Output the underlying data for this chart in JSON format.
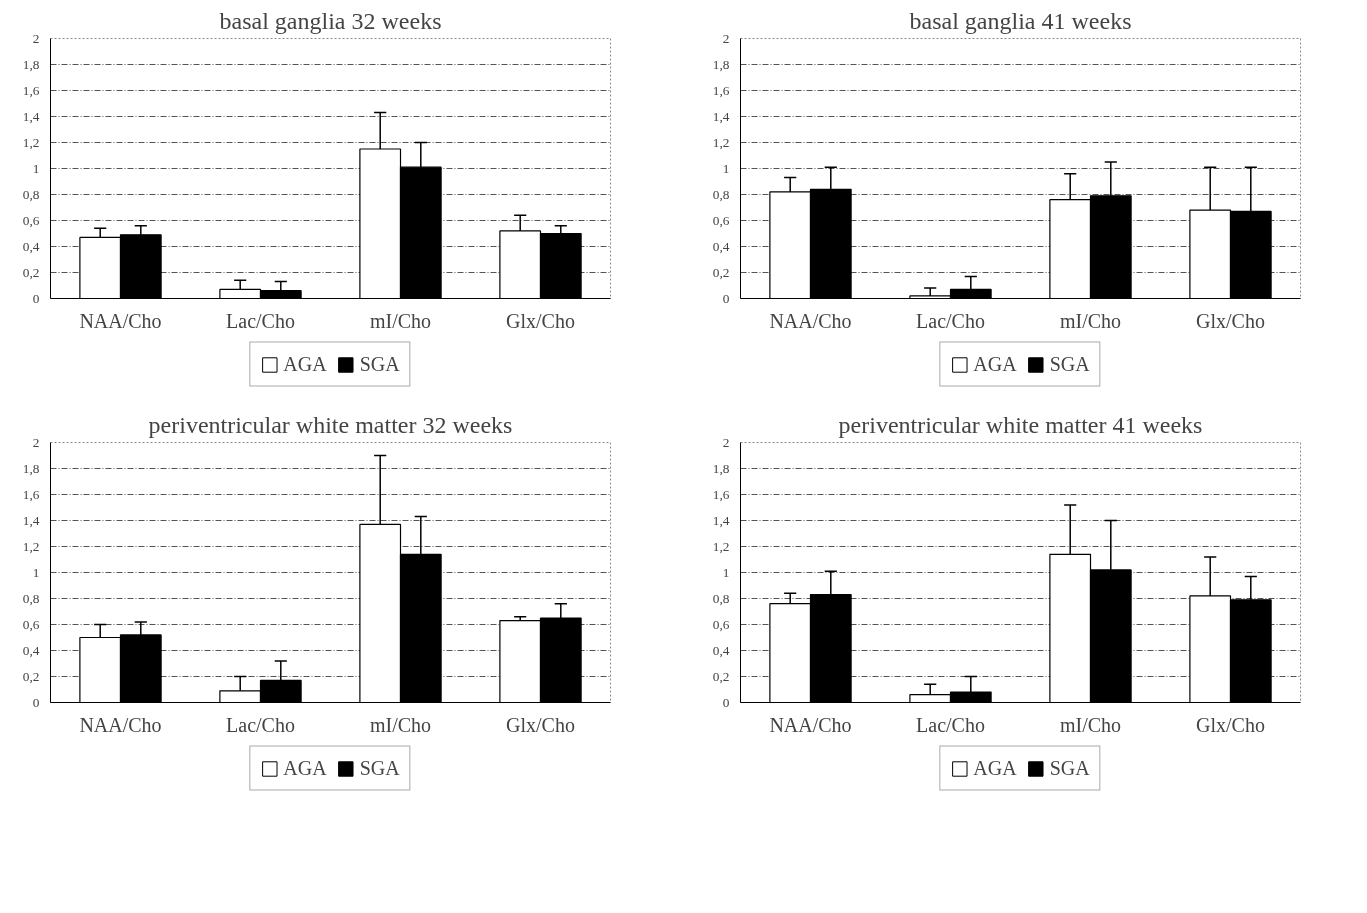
{
  "chart_data": [
    {
      "type": "bar",
      "title": "basal ganglia 32 weeks",
      "categories": [
        "NAA/Cho",
        "Lac/Cho",
        "mI/Cho",
        "Glx/Cho"
      ],
      "ylim": [
        0,
        2
      ],
      "yticks": [
        {
          "value": 0,
          "label": "0"
        },
        {
          "value": 0.2,
          "label": "0,2"
        },
        {
          "value": 0.4,
          "label": "0,4"
        },
        {
          "value": 0.6,
          "label": "0,6"
        },
        {
          "value": 0.8,
          "label": "0,8"
        },
        {
          "value": 1,
          "label": "1"
        },
        {
          "value": 1.2,
          "label": "1,2"
        },
        {
          "value": 1.4,
          "label": "1,4"
        },
        {
          "value": 1.6,
          "label": "1,6"
        },
        {
          "value": 1.8,
          "label": "1,8"
        },
        {
          "value": 2,
          "label": "2"
        }
      ],
      "grid": "y",
      "legend": "bottom",
      "series": [
        {
          "name": "AGA",
          "color": "#ffffff",
          "values": [
            0.47,
            0.07,
            1.15,
            0.52
          ],
          "errors": [
            [
              0.47,
              0.54
            ],
            [
              0.07,
              0.14
            ],
            [
              1.15,
              1.43
            ],
            [
              0.52,
              0.64
            ]
          ]
        },
        {
          "name": "SGA",
          "color": "#000000",
          "values": [
            0.49,
            0.06,
            1.01,
            0.5
          ],
          "errors": [
            [
              0.49,
              0.56
            ],
            [
              0.06,
              0.13
            ],
            [
              1.01,
              1.2
            ],
            [
              0.5,
              0.56
            ]
          ]
        }
      ]
    },
    {
      "type": "bar",
      "title": "basal ganglia 41 weeks",
      "categories": [
        "NAA/Cho",
        "Lac/Cho",
        "mI/Cho",
        "Glx/Cho"
      ],
      "ylim": [
        0,
        2
      ],
      "yticks": [
        {
          "value": 0,
          "label": "0"
        },
        {
          "value": 0.2,
          "label": "0,2"
        },
        {
          "value": 0.4,
          "label": "0,4"
        },
        {
          "value": 0.6,
          "label": "0,6"
        },
        {
          "value": 0.8,
          "label": "0,8"
        },
        {
          "value": 1,
          "label": "1"
        },
        {
          "value": 1.2,
          "label": "1,2"
        },
        {
          "value": 1.4,
          "label": "1,4"
        },
        {
          "value": 1.6,
          "label": "1,6"
        },
        {
          "value": 1.8,
          "label": "1,8"
        },
        {
          "value": 2,
          "label": "2"
        }
      ],
      "grid": "y",
      "legend": "bottom",
      "series": [
        {
          "name": "AGA",
          "color": "#ffffff",
          "values": [
            0.82,
            0.02,
            0.76,
            0.68
          ],
          "errors": [
            [
              0.82,
              0.93
            ],
            [
              0.02,
              0.08
            ],
            [
              0.76,
              0.96
            ],
            [
              0.68,
              1.01
            ]
          ]
        },
        {
          "name": "SGA",
          "color": "#000000",
          "values": [
            0.84,
            0.07,
            0.79,
            0.67
          ],
          "errors": [
            [
              0.84,
              1.01
            ],
            [
              0.07,
              0.17
            ],
            [
              0.79,
              1.05
            ],
            [
              0.67,
              1.01
            ]
          ]
        }
      ]
    },
    {
      "type": "bar",
      "title": "periventricular white matter 32 weeks",
      "categories": [
        "NAA/Cho",
        "Lac/Cho",
        "mI/Cho",
        "Glx/Cho"
      ],
      "ylim": [
        0,
        2
      ],
      "yticks": [
        {
          "value": 0,
          "label": "0"
        },
        {
          "value": 0.2,
          "label": "0,2"
        },
        {
          "value": 0.4,
          "label": "0,4"
        },
        {
          "value": 0.6,
          "label": "0,6"
        },
        {
          "value": 0.8,
          "label": "0,8"
        },
        {
          "value": 1,
          "label": "1"
        },
        {
          "value": 1.2,
          "label": "1,2"
        },
        {
          "value": 1.4,
          "label": "1,4"
        },
        {
          "value": 1.6,
          "label": "1,6"
        },
        {
          "value": 1.8,
          "label": "1,8"
        },
        {
          "value": 2,
          "label": "2"
        }
      ],
      "grid": "y",
      "legend": "bottom",
      "series": [
        {
          "name": "AGA",
          "color": "#ffffff",
          "values": [
            0.5,
            0.09,
            1.37,
            0.63
          ],
          "errors": [
            [
              0.5,
              0.6
            ],
            [
              0.09,
              0.2
            ],
            [
              1.37,
              1.9
            ],
            [
              0.63,
              0.66
            ]
          ]
        },
        {
          "name": "SGA",
          "color": "#000000",
          "values": [
            0.52,
            0.17,
            1.14,
            0.65
          ],
          "errors": [
            [
              0.52,
              0.62
            ],
            [
              0.17,
              0.32
            ],
            [
              1.14,
              1.43
            ],
            [
              0.65,
              0.76
            ]
          ]
        }
      ]
    },
    {
      "type": "bar",
      "title": "periventricular white matter 41 weeks",
      "categories": [
        "NAA/Cho",
        "Lac/Cho",
        "mI/Cho",
        "Glx/Cho"
      ],
      "ylim": [
        0,
        2
      ],
      "yticks": [
        {
          "value": 0,
          "label": "0"
        },
        {
          "value": 0.2,
          "label": "0,2"
        },
        {
          "value": 0.4,
          "label": "0,4"
        },
        {
          "value": 0.6,
          "label": "0,6"
        },
        {
          "value": 0.8,
          "label": "0,8"
        },
        {
          "value": 1,
          "label": "1"
        },
        {
          "value": 1.2,
          "label": "1,2"
        },
        {
          "value": 1.4,
          "label": "1,4"
        },
        {
          "value": 1.6,
          "label": "1,6"
        },
        {
          "value": 1.8,
          "label": "1,8"
        },
        {
          "value": 2,
          "label": "2"
        }
      ],
      "grid": "y",
      "legend": "bottom",
      "series": [
        {
          "name": "AGA",
          "color": "#ffffff",
          "values": [
            0.76,
            0.06,
            1.14,
            0.82
          ],
          "errors": [
            [
              0.76,
              0.84
            ],
            [
              0.06,
              0.14
            ],
            [
              1.14,
              1.52
            ],
            [
              0.82,
              1.12
            ]
          ]
        },
        {
          "name": "SGA",
          "color": "#000000",
          "values": [
            0.83,
            0.08,
            1.02,
            0.79
          ],
          "errors": [
            [
              0.83,
              1.01
            ],
            [
              0.08,
              0.2
            ],
            [
              1.02,
              1.4
            ],
            [
              0.79,
              0.97
            ]
          ]
        }
      ]
    }
  ]
}
